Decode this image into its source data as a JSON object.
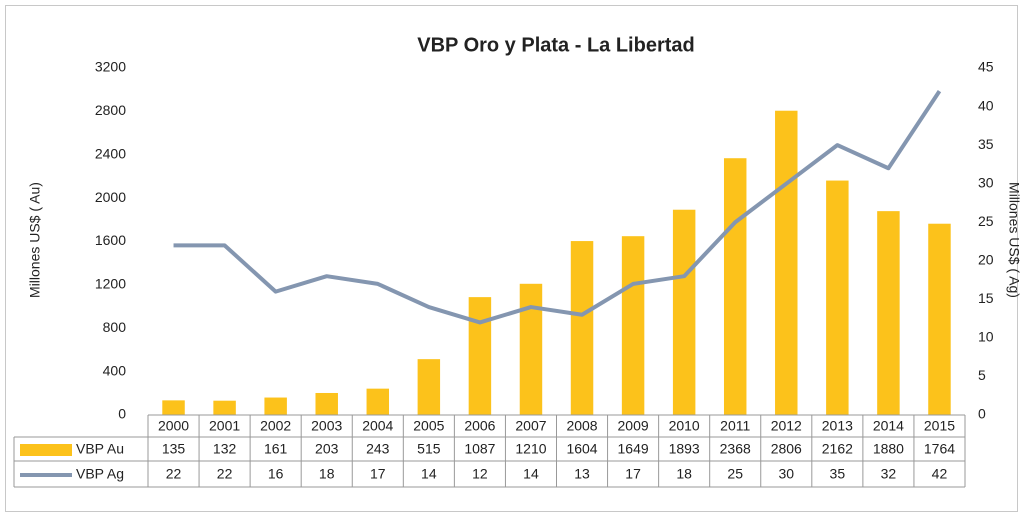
{
  "chart_data": {
    "type": "bar_line_table",
    "title": "VBP Oro y Plata - La Libertad",
    "y_label": "Millones US$ ( Au)",
    "y2_label": "Millones US$ ( Ag)",
    "categories": [
      "2000",
      "2001",
      "2002",
      "2003",
      "2004",
      "2005",
      "2006",
      "2007",
      "2008",
      "2009",
      "2010",
      "2011",
      "2012",
      "2013",
      "2014",
      "2015"
    ],
    "series": [
      {
        "name": "VBP Au",
        "color": "#fcc21b",
        "type": "bar",
        "axis": "y",
        "values": [
          135,
          132,
          161,
          203,
          243,
          515,
          1087,
          1210,
          1604,
          1649,
          1893,
          2368,
          2806,
          2162,
          1880,
          1764
        ]
      },
      {
        "name": "VBP Ag",
        "color": "#8496b0",
        "type": "line",
        "axis": "y2",
        "values": [
          22,
          22,
          16,
          18,
          17,
          14,
          12,
          14,
          13,
          17,
          18,
          25,
          30,
          35,
          32,
          42
        ]
      }
    ],
    "ylim": [
      0,
      3200
    ],
    "yticks": [
      0,
      400,
      800,
      1200,
      1600,
      2000,
      2400,
      2800,
      3200
    ],
    "y2lim": [
      0,
      45
    ],
    "y2ticks": [
      0,
      5,
      10,
      15,
      20,
      25,
      30,
      35,
      40,
      45
    ],
    "grid": false
  }
}
